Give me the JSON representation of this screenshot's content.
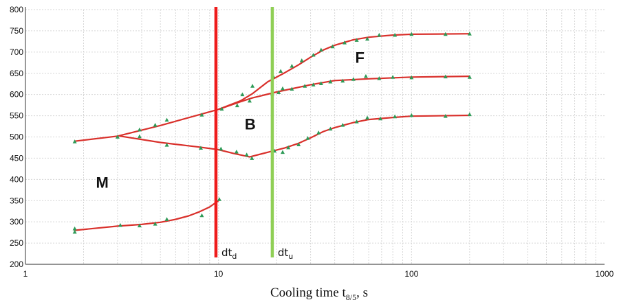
{
  "chart_data": {
    "type": "scatter",
    "title": "",
    "xlabel": {
      "main": "Cooling time t",
      "sub": "8/5",
      "tail": ", s"
    },
    "ylabel": "",
    "xscale": "log",
    "xlim": [
      1,
      1000
    ],
    "ylim": [
      200,
      800
    ],
    "grid": true,
    "x_ticks": [
      1,
      10,
      100,
      1000
    ],
    "y_ticks": [
      200,
      250,
      300,
      350,
      400,
      450,
      500,
      550,
      600,
      650,
      700,
      750,
      800
    ],
    "colors": {
      "curve": "#d9302b",
      "marker": "#2e9a57",
      "dt_d_line": "#ee1c1c",
      "dt_u_line": "#8fcf55",
      "grid": "#d6d6d6"
    },
    "curves": [
      {
        "x": [
          1.8,
          3.0,
          5.0,
          10,
          13,
          15,
          20,
          30,
          40,
          60,
          100,
          200
        ],
        "y": [
          490,
          502,
          527,
          565,
          583,
          592,
          606,
          623,
          633,
          637,
          641,
          643
        ]
      },
      {
        "x": [
          3.1,
          5.0,
          8.0,
          10,
          12,
          14.5,
          18,
          22,
          26,
          30,
          35,
          40,
          50,
          60,
          80,
          100,
          200
        ],
        "y": [
          502,
          487,
          476,
          470,
          461,
          453,
          464,
          474,
          485,
          498,
          513,
          522,
          534,
          541,
          546,
          549,
          551
        ]
      },
      {
        "x": [
          10,
          13,
          15,
          18,
          22,
          26,
          30,
          35,
          40,
          50,
          60,
          80,
          100,
          200
        ],
        "y": [
          565,
          585,
          602,
          630,
          651,
          670,
          688,
          705,
          716,
          729,
          735,
          740,
          742,
          743
        ]
      },
      {
        "x": [
          1.8,
          3.0,
          4.0,
          5.0,
          6.0,
          7.0,
          8.0,
          9.0,
          10.0
        ],
        "y": [
          280,
          290,
          294,
          299,
          306,
          314,
          324,
          335,
          350
        ]
      }
    ],
    "points": [
      {
        "x": 1.8,
        "y": 489
      },
      {
        "x": 3.0,
        "y": 500
      },
      {
        "x": 3.9,
        "y": 517
      },
      {
        "x": 4.7,
        "y": 528
      },
      {
        "x": 5.4,
        "y": 540
      },
      {
        "x": 8.2,
        "y": 552
      },
      {
        "x": 10.4,
        "y": 566
      },
      {
        "x": 12.5,
        "y": 574
      },
      {
        "x": 14.5,
        "y": 585
      },
      {
        "x": 19.0,
        "y": 602
      },
      {
        "x": 20.5,
        "y": 605
      },
      {
        "x": 21.5,
        "y": 614
      },
      {
        "x": 24,
        "y": 613
      },
      {
        "x": 28,
        "y": 620
      },
      {
        "x": 31,
        "y": 623
      },
      {
        "x": 34,
        "y": 626
      },
      {
        "x": 38,
        "y": 630
      },
      {
        "x": 44,
        "y": 632
      },
      {
        "x": 50,
        "y": 636
      },
      {
        "x": 58,
        "y": 643
      },
      {
        "x": 68,
        "y": 638
      },
      {
        "x": 80,
        "y": 641
      },
      {
        "x": 100,
        "y": 640
      },
      {
        "x": 150,
        "y": 642
      },
      {
        "x": 200,
        "y": 641
      },
      {
        "x": 3.9,
        "y": 501
      },
      {
        "x": 5.4,
        "y": 481
      },
      {
        "x": 8.1,
        "y": 474
      },
      {
        "x": 10.3,
        "y": 472
      },
      {
        "x": 12.4,
        "y": 465
      },
      {
        "x": 14,
        "y": 458
      },
      {
        "x": 14.9,
        "y": 450
      },
      {
        "x": 19.5,
        "y": 467
      },
      {
        "x": 21.5,
        "y": 464
      },
      {
        "x": 23,
        "y": 475
      },
      {
        "x": 26,
        "y": 482
      },
      {
        "x": 29,
        "y": 497
      },
      {
        "x": 33,
        "y": 510
      },
      {
        "x": 38,
        "y": 519
      },
      {
        "x": 44,
        "y": 528
      },
      {
        "x": 52,
        "y": 536
      },
      {
        "x": 59,
        "y": 545
      },
      {
        "x": 69,
        "y": 543
      },
      {
        "x": 82,
        "y": 548
      },
      {
        "x": 100,
        "y": 551
      },
      {
        "x": 150,
        "y": 549
      },
      {
        "x": 200,
        "y": 553
      },
      {
        "x": 13.3,
        "y": 600
      },
      {
        "x": 15,
        "y": 620
      },
      {
        "x": 19.2,
        "y": 643
      },
      {
        "x": 21,
        "y": 655
      },
      {
        "x": 24,
        "y": 667
      },
      {
        "x": 27,
        "y": 680
      },
      {
        "x": 31,
        "y": 693
      },
      {
        "x": 34,
        "y": 705
      },
      {
        "x": 39,
        "y": 713
      },
      {
        "x": 45,
        "y": 722
      },
      {
        "x": 52,
        "y": 728
      },
      {
        "x": 59,
        "y": 731
      },
      {
        "x": 68,
        "y": 740
      },
      {
        "x": 82,
        "y": 740
      },
      {
        "x": 100,
        "y": 742
      },
      {
        "x": 150,
        "y": 742
      },
      {
        "x": 200,
        "y": 743
      },
      {
        "x": 1.8,
        "y": 284
      },
      {
        "x": 1.8,
        "y": 276
      },
      {
        "x": 3.1,
        "y": 292
      },
      {
        "x": 3.9,
        "y": 291
      },
      {
        "x": 4.7,
        "y": 295
      },
      {
        "x": 5.4,
        "y": 306
      },
      {
        "x": 8.2,
        "y": 315
      },
      {
        "x": 10.1,
        "y": 353
      }
    ],
    "vertical_lines": [
      {
        "id": "dt_d",
        "x": 9.7,
        "color": "#ee1c1c",
        "label": "dt",
        "sub": "d"
      },
      {
        "id": "dt_u",
        "x": 19.0,
        "color": "#8fcf55",
        "label": "dt",
        "sub": "u"
      }
    ],
    "annotations": [
      {
        "text": "M",
        "x": 2.5,
        "y": 380
      },
      {
        "text": "B",
        "x": 14.6,
        "y": 518
      },
      {
        "text": "F",
        "x": 54,
        "y": 675
      }
    ]
  }
}
